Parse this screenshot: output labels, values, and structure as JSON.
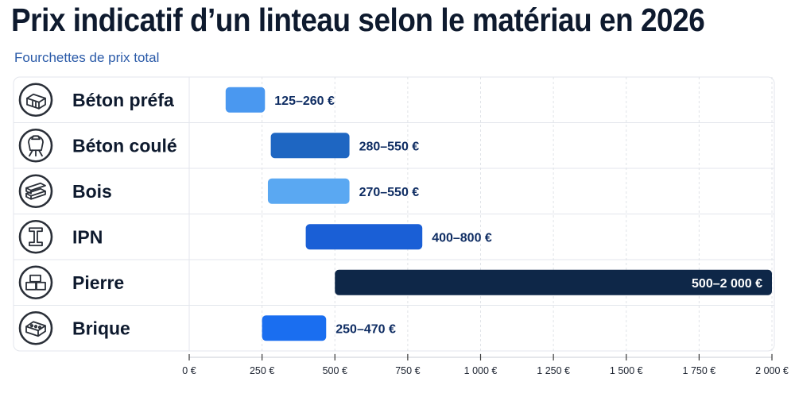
{
  "title": "Prix indicatif d’un linteau selon le matériau en 2026",
  "subtitle": "Fourchettes de prix total",
  "chart_data": {
    "type": "bar",
    "orientation": "horizontal-range",
    "xlim": [
      0,
      2000
    ],
    "grid": true,
    "x_ticks": [
      {
        "value": 0,
        "label": "0 €"
      },
      {
        "value": 250,
        "label": "250 €"
      },
      {
        "value": 500,
        "label": "500 €"
      },
      {
        "value": 750,
        "label": "750 €"
      },
      {
        "value": 1000,
        "label": "1 000 €"
      },
      {
        "value": 1250,
        "label": "1 250 €"
      },
      {
        "value": 1500,
        "label": "1 500 €"
      },
      {
        "value": 1750,
        "label": "1 750 €"
      },
      {
        "value": 2000,
        "label": "2 000 €"
      }
    ],
    "categories": [
      "Béton préfa",
      "Béton coulé",
      "Bois",
      "IPN",
      "Pierre",
      "Brique"
    ],
    "ranges": [
      {
        "category": "Béton préfa",
        "min": 125,
        "max": 260,
        "label": "125–260 €",
        "color": "#4a98f0",
        "icon": "concrete-block-icon"
      },
      {
        "category": "Béton coulé",
        "min": 280,
        "max": 550,
        "label": "280–550 €",
        "color": "#1e66c2",
        "icon": "concrete-mixer-icon"
      },
      {
        "category": "Bois",
        "min": 270,
        "max": 550,
        "label": "270–550 €",
        "color": "#5aa8f2",
        "icon": "wood-planks-icon"
      },
      {
        "category": "IPN",
        "min": 400,
        "max": 800,
        "label": "400–800 €",
        "color": "#1a5fd6",
        "icon": "steel-beam-icon"
      },
      {
        "category": "Pierre",
        "min": 500,
        "max": 2000,
        "label": "500–2 000 €",
        "color": "#0e2748",
        "icon": "stone-blocks-icon"
      },
      {
        "category": "Brique",
        "min": 250,
        "max": 470,
        "label": "250–470 €",
        "color": "#1a6ef0",
        "icon": "brick-icon"
      }
    ]
  }
}
